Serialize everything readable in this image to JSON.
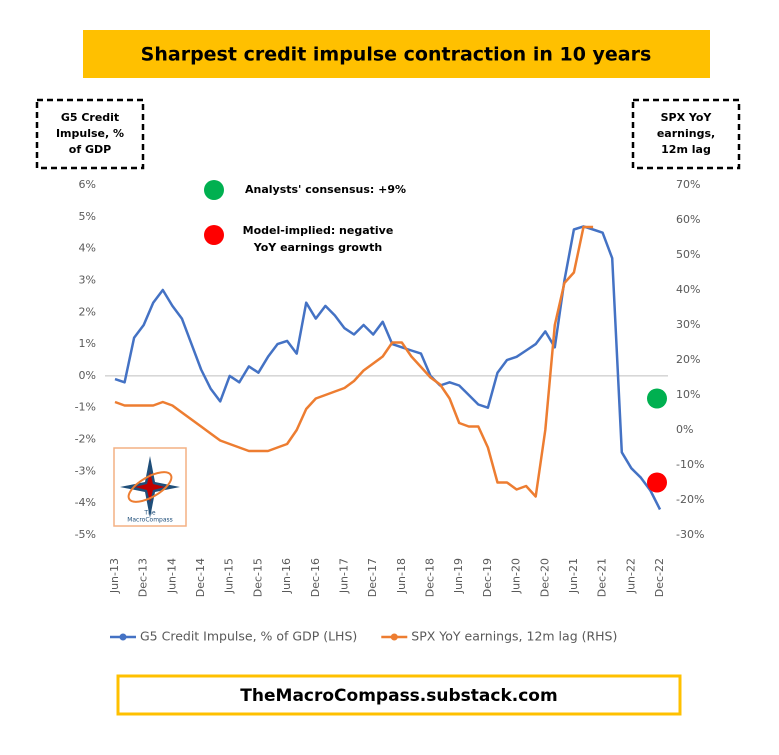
{
  "chart_data": {
    "type": "line",
    "title": "Sharpest credit impulse contraction in 10 years",
    "y_label": [
      "G5 Credit",
      "Impulse, %",
      "of GDP"
    ],
    "y2_label": [
      "SPX YoY",
      "earnings,",
      "12m lag"
    ],
    "categories": [
      "Jun-13",
      null,
      null,
      "Dec-13",
      null,
      null,
      "Jun-14",
      null,
      null,
      "Dec-14",
      null,
      null,
      "Jun-15",
      null,
      null,
      "Dec-15",
      null,
      null,
      "Jun-16",
      null,
      null,
      "Dec-16",
      null,
      null,
      "Jun-17",
      null,
      null,
      "Dec-17",
      null,
      null,
      "Jun-18",
      null,
      null,
      "Dec-18",
      null,
      null,
      "Jun-19",
      null,
      null,
      "Dec-19",
      null,
      null,
      "Jun-20",
      null,
      null,
      "Dec-20",
      null,
      null,
      "Jun-21",
      null,
      null,
      "Dec-21",
      null,
      null,
      "Jun-22",
      null,
      null,
      "Dec-22"
    ],
    "series": [
      {
        "name": "G5 Credit Impulse, % of GDP (LHS)",
        "color": "#4472c4",
        "values": [
          -0.1,
          -0.2,
          1.2,
          1.6,
          2.3,
          2.7,
          2.2,
          1.8,
          1.0,
          0.2,
          -0.4,
          -0.8,
          0.0,
          -0.2,
          0.3,
          0.1,
          0.6,
          1.0,
          1.1,
          0.7,
          2.3,
          1.8,
          2.2,
          1.9,
          1.5,
          1.3,
          1.6,
          1.3,
          1.7,
          1.0,
          0.9,
          0.8,
          0.7,
          0.0,
          -0.3,
          -0.2,
          -0.3,
          -0.6,
          -0.9,
          -1.0,
          0.1,
          0.5,
          0.6,
          0.8,
          1.0,
          1.4,
          0.9,
          3.0,
          4.6,
          4.7,
          4.6,
          4.5,
          3.7,
          -2.4,
          -2.9,
          -3.2,
          -3.6,
          -4.2
        ]
      },
      {
        "name": "SPX YoY earnings, 12m lag (RHS)",
        "color": "#ed7d31",
        "axis": "y2",
        "values": [
          8,
          7,
          7,
          7,
          7,
          8,
          7,
          5,
          3,
          1,
          -1,
          -3,
          -4,
          -5,
          -6,
          -6,
          -6,
          -5,
          -4,
          0,
          6,
          9,
          10,
          11,
          12,
          14,
          17,
          19,
          21,
          25,
          25,
          21,
          18,
          15,
          13,
          9,
          2,
          1,
          1,
          -5,
          -15,
          -15,
          -17,
          -16,
          -19,
          0,
          30,
          42,
          45,
          58,
          58,
          null,
          null,
          null,
          null,
          null,
          null,
          null
        ]
      }
    ],
    "markers": [
      {
        "label": [
          "Analysts' consensus: +9%"
        ],
        "value": 9,
        "color": "#00b050"
      },
      {
        "label": [
          "Model-implied: negative",
          "YoY earnings growth"
        ],
        "value": -15,
        "color": "#ff0000"
      }
    ],
    "ylim": [
      -5,
      6
    ],
    "yticks": [
      {
        "value": -5,
        "label": "-5%"
      },
      {
        "value": -4,
        "label": "-4%"
      },
      {
        "value": -3,
        "label": "-3%"
      },
      {
        "value": -2,
        "label": "-2%"
      },
      {
        "value": -1,
        "label": "-1%"
      },
      {
        "value": 0,
        "label": "0%"
      },
      {
        "value": 1,
        "label": "1%"
      },
      {
        "value": 2,
        "label": "2%"
      },
      {
        "value": 3,
        "label": "3%"
      },
      {
        "value": 4,
        "label": "4%"
      },
      {
        "value": 5,
        "label": "5%"
      },
      {
        "value": 6,
        "label": "6%"
      }
    ],
    "y2lim": [
      -30,
      70
    ],
    "y2ticks": [
      {
        "value": -30,
        "label": "-30%"
      },
      {
        "value": -20,
        "label": "-20%"
      },
      {
        "value": -10,
        "label": "-10%"
      },
      {
        "value": 0,
        "label": "0%"
      },
      {
        "value": 10,
        "label": "10%"
      },
      {
        "value": 20,
        "label": "20%"
      },
      {
        "value": 30,
        "label": "30%"
      },
      {
        "value": 40,
        "label": "40%"
      },
      {
        "value": 50,
        "label": "50%"
      },
      {
        "value": 60,
        "label": "60%"
      },
      {
        "value": 70,
        "label": "70%"
      }
    ],
    "grid": false,
    "legend": "bottom"
  },
  "logo": [
    "The",
    "MacroCompass"
  ],
  "footer": "TheMacroCompass.substack.com"
}
